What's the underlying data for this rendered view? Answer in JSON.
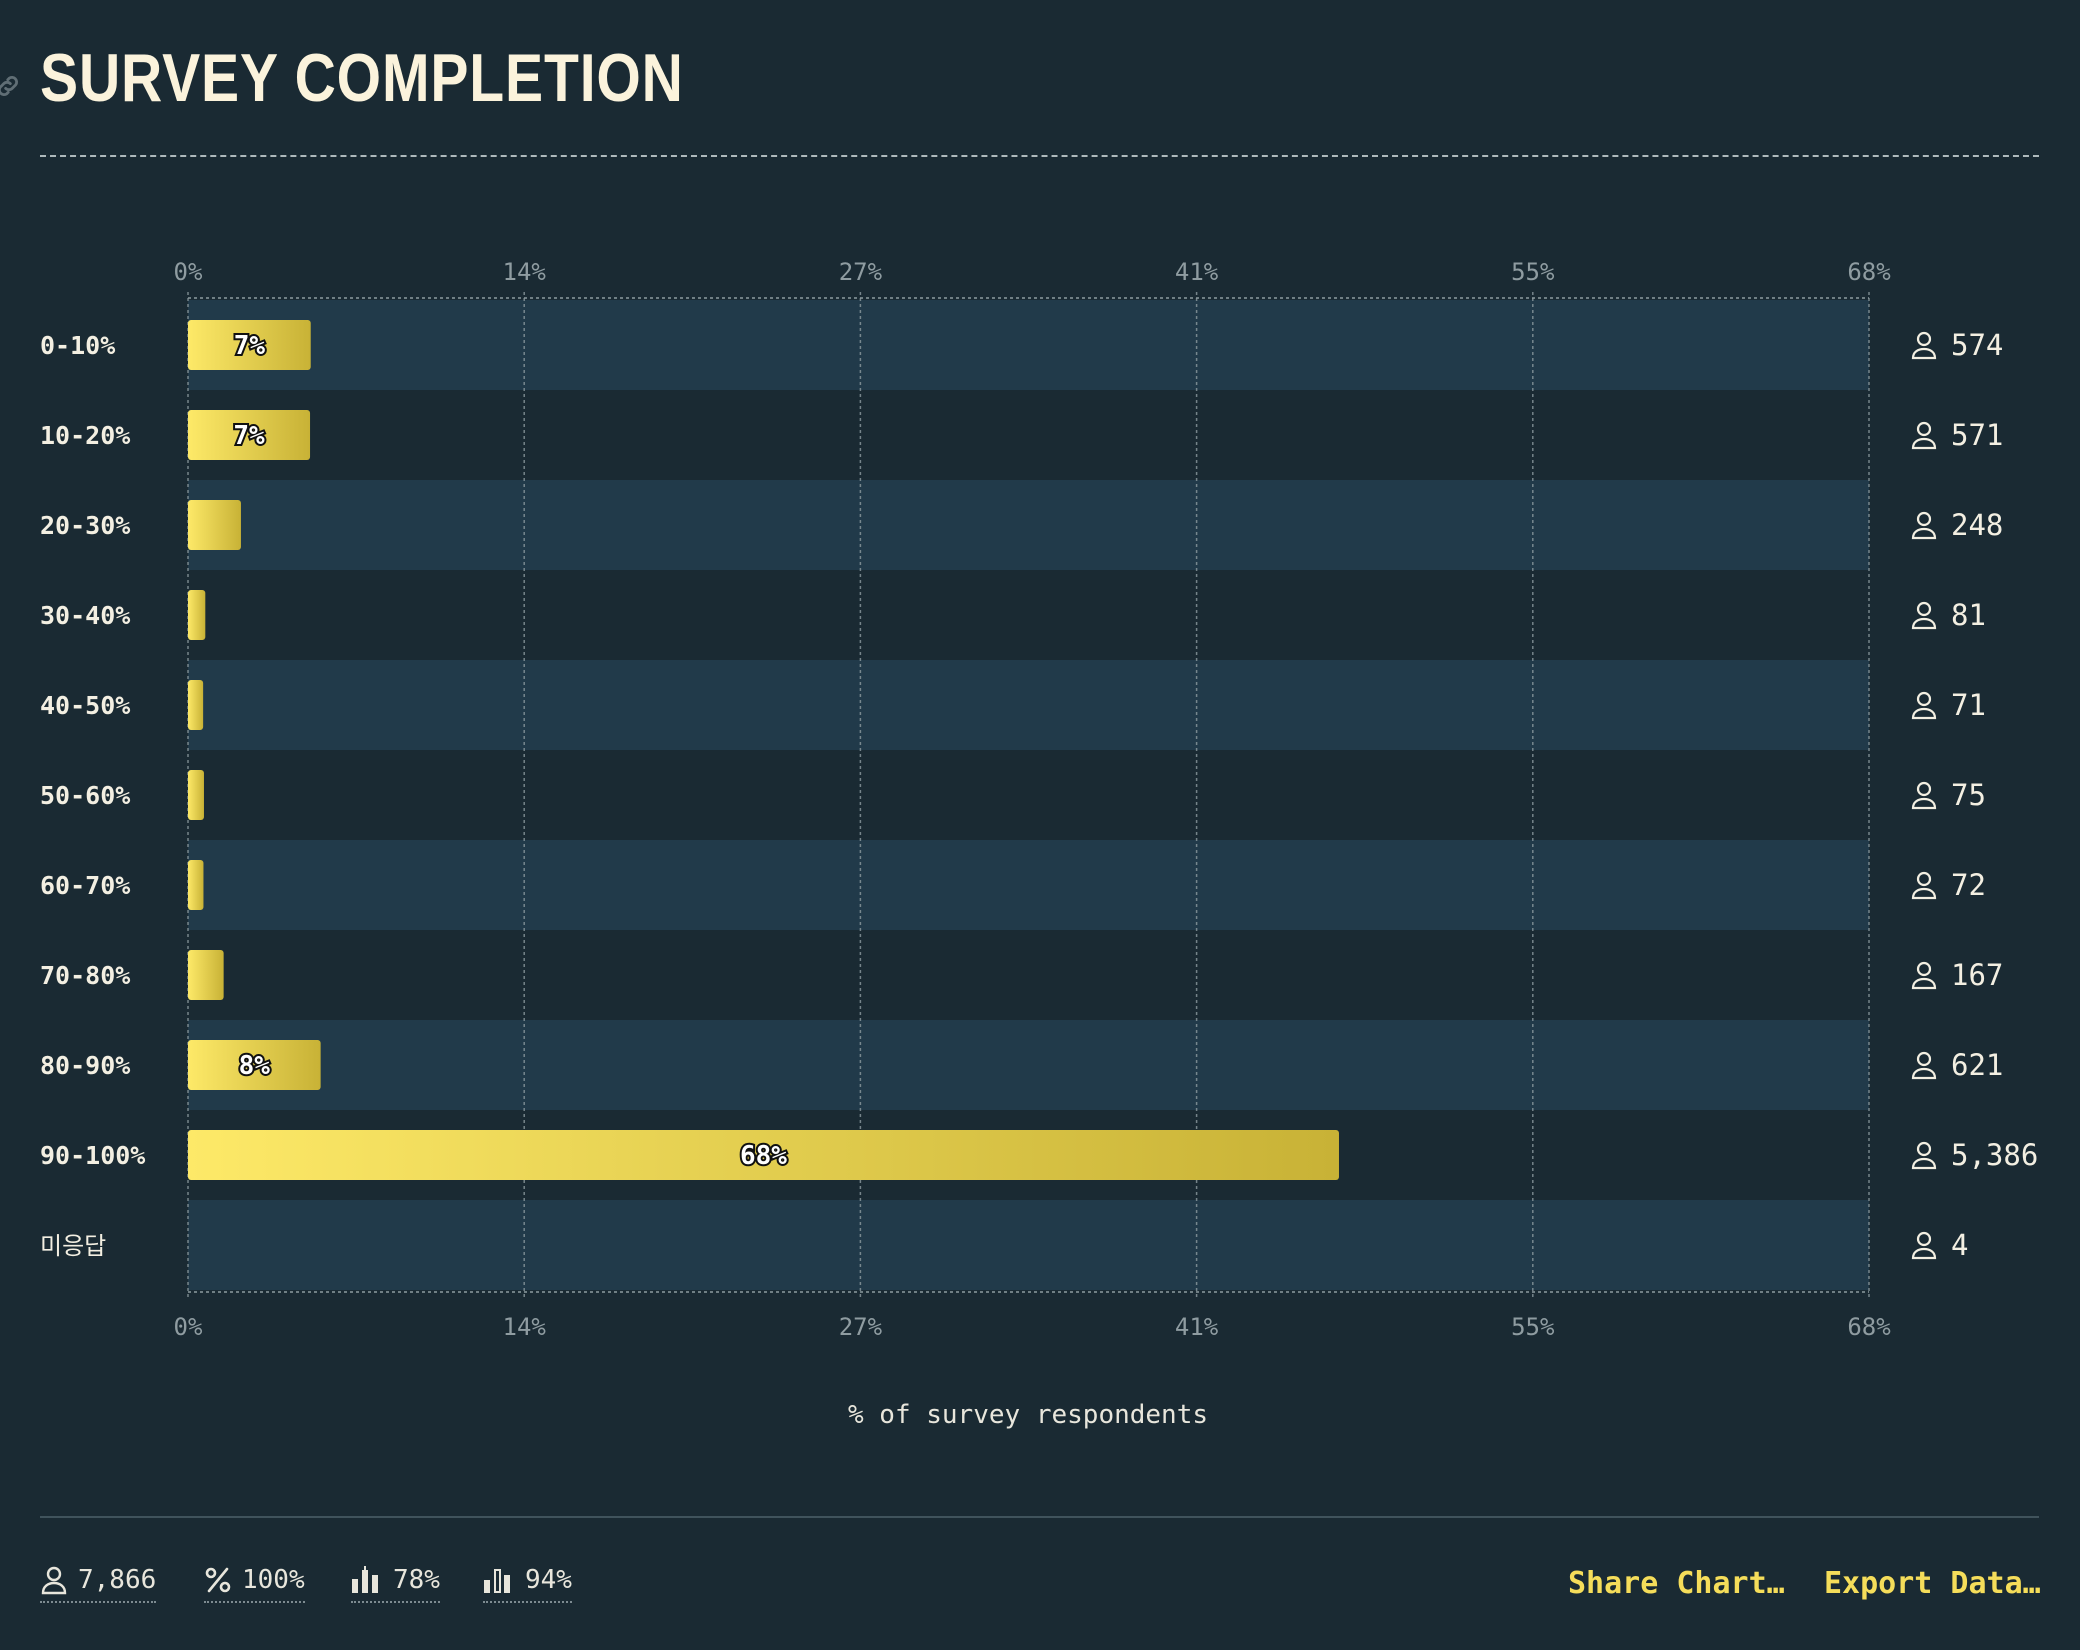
{
  "title": "SURVEY COMPLETION",
  "icons": {
    "permalink": "link-icon",
    "respondents": "person-icon",
    "percent": "percent-icon",
    "stat3": "bar-chart-icon",
    "stat4": "bar-chart-outline-icon"
  },
  "colors": {
    "background": "#1a2a33",
    "row_band": "#213a4a",
    "bar_start": "#fde968",
    "bar_end": "#c8b236",
    "accent": "#f5dd5a"
  },
  "chart_data": {
    "type": "bar",
    "orientation": "horizontal",
    "categories": [
      "0-10%",
      "10-20%",
      "20-30%",
      "30-40%",
      "40-50%",
      "50-60%",
      "60-70%",
      "70-80%",
      "80-90%",
      "90-100%",
      "미응답"
    ],
    "values": [
      7.3,
      7.26,
      3.15,
      1.03,
      0.9,
      0.95,
      0.92,
      2.12,
      7.89,
      68.47,
      0.05
    ],
    "data_labels": [
      "7%",
      "7%",
      "",
      "",
      "",
      "",
      "",
      "",
      "8%",
      "68%",
      ""
    ],
    "respondent_counts": [
      "574",
      "571",
      "248",
      "81",
      "71",
      "75",
      "72",
      "167",
      "621",
      "5,386",
      "4"
    ],
    "x_ticks": [
      "0%",
      "14%",
      "27%",
      "41%",
      "55%",
      "68%"
    ],
    "xlim": [
      0,
      100
    ],
    "xlabel": "% of survey respondents",
    "grid": true
  },
  "footer": {
    "stats": [
      {
        "icon": "person-icon",
        "value": "7,866"
      },
      {
        "icon": "percent-icon",
        "value": "100%"
      },
      {
        "icon": "bar-chart-icon",
        "value": "78%"
      },
      {
        "icon": "bar-chart-outline-icon",
        "value": "94%"
      }
    ],
    "share_label": "Share Chart…",
    "export_label": "Export Data…"
  }
}
